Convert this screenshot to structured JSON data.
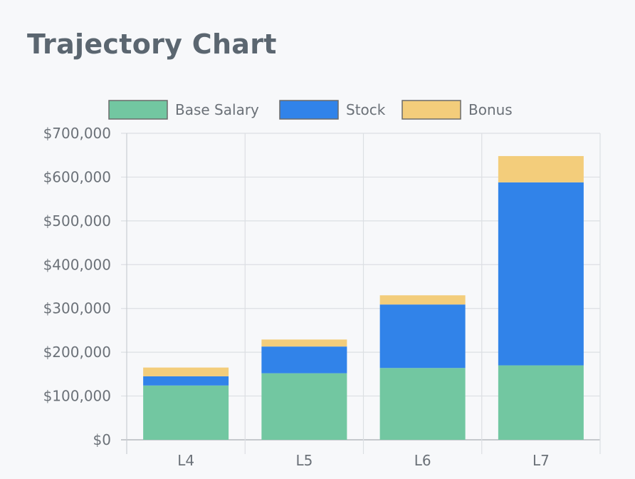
{
  "title": "Trajectory Chart",
  "chart_data": {
    "type": "bar",
    "stacked": true,
    "categories": [
      "L4",
      "L5",
      "L6",
      "L7"
    ],
    "series": [
      {
        "name": "Base Salary",
        "values": [
          124000,
          152000,
          164000,
          170000
        ],
        "color": "#72c7a1"
      },
      {
        "name": "Stock",
        "values": [
          21000,
          61000,
          145000,
          418000
        ],
        "color": "#3183e9"
      },
      {
        "name": "Bonus",
        "values": [
          20000,
          16000,
          21000,
          60000
        ],
        "color": "#f3cd7b"
      }
    ],
    "ylim": [
      0,
      700000
    ],
    "yticks": [
      0,
      100000,
      200000,
      300000,
      400000,
      500000,
      600000,
      700000
    ],
    "ytick_labels": [
      "$0",
      "$100,000",
      "$200,000",
      "$300,000",
      "$400,000",
      "$500,000",
      "$600,000",
      "$700,000"
    ],
    "grid": true,
    "legend_position": "top"
  }
}
